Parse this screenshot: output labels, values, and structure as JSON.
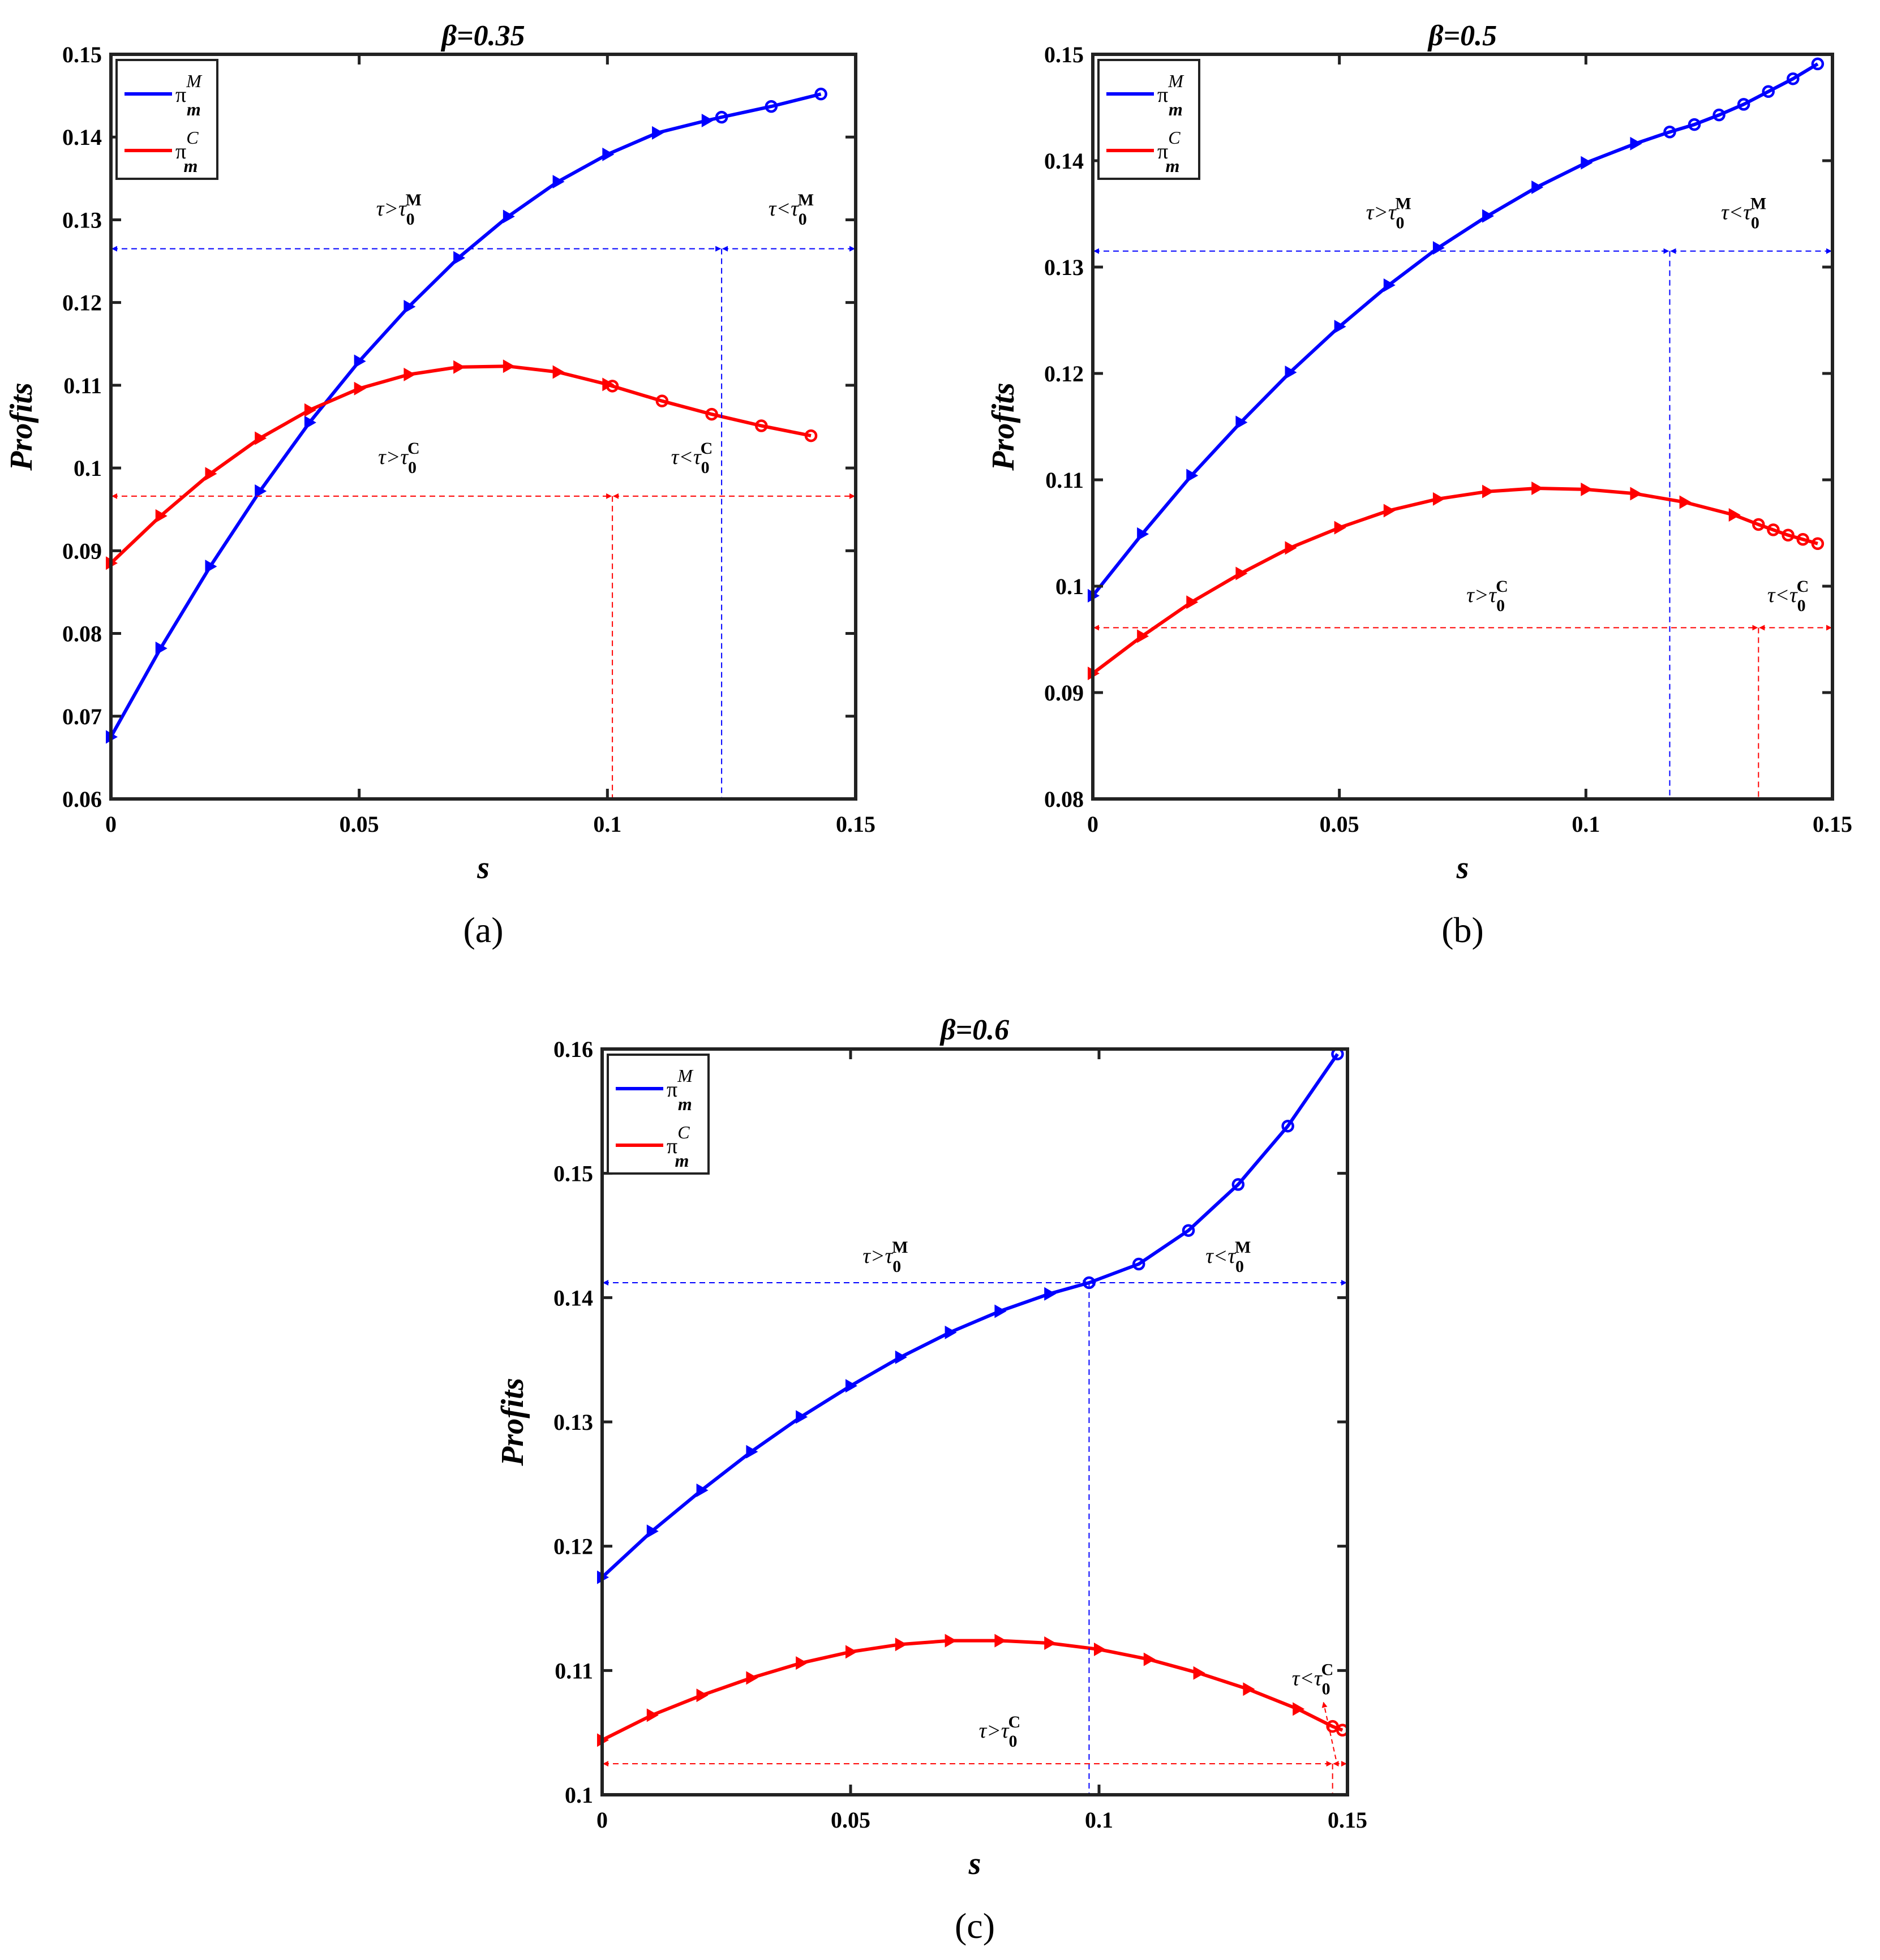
{
  "chart_data": [
    {
      "type": "line",
      "panel_label": "(a)",
      "title": "β=0.35",
      "title_parts": [
        "β=",
        "0.35"
      ],
      "xlabel": "s",
      "ylabel": "Profits",
      "xlim": [
        0,
        0.15
      ],
      "ylim": [
        0.06,
        0.15
      ],
      "xticks": [
        0,
        0.05,
        0.1,
        0.15
      ],
      "xtick_labels": [
        "0",
        "0.05",
        "0.1",
        "0.15"
      ],
      "yticks": [
        0.06,
        0.07,
        0.08,
        0.09,
        0.1,
        0.11,
        0.12,
        0.13,
        0.14,
        0.15
      ],
      "ytick_labels": [
        "0.06",
        "0.07",
        "0.08",
        "0.09",
        "0.1",
        "0.11",
        "0.12",
        "0.13",
        "0.14",
        "0.15"
      ],
      "legend_position": "top-left",
      "grid": false,
      "series": [
        {
          "name": "π_m^M",
          "legend_base": "π",
          "legend_sup": "M",
          "legend_sub": "m",
          "color": "#0000ff",
          "x": [
            0,
            0.01,
            0.02,
            0.03,
            0.04,
            0.05,
            0.06,
            0.07,
            0.08,
            0.09,
            0.1,
            0.11,
            0.12,
            0.123,
            0.133,
            0.143
          ],
          "y": [
            0.0675,
            0.0782,
            0.0881,
            0.0972,
            0.1055,
            0.1129,
            0.1195,
            0.1254,
            0.1304,
            0.1346,
            0.1379,
            0.1405,
            0.142,
            0.1424,
            0.1437,
            0.1452
          ],
          "markers": [
            "triangle",
            "triangle",
            "triangle",
            "triangle",
            "triangle",
            "triangle",
            "triangle",
            "triangle",
            "triangle",
            "triangle",
            "triangle",
            "triangle",
            "triangle",
            "circle",
            "circle",
            "circle"
          ]
        },
        {
          "name": "π_m^C",
          "legend_base": "π",
          "legend_sup": "C",
          "legend_sub": "m",
          "color": "#ff0000",
          "x": [
            0,
            0.01,
            0.02,
            0.03,
            0.04,
            0.05,
            0.06,
            0.07,
            0.08,
            0.09,
            0.1,
            0.101,
            0.111,
            0.121,
            0.131,
            0.141
          ],
          "y": [
            0.0885,
            0.0942,
            0.0993,
            0.1036,
            0.107,
            0.1096,
            0.1113,
            0.1122,
            0.1123,
            0.1116,
            0.1101,
            0.1099,
            0.1081,
            0.1065,
            0.1051,
            0.1039
          ],
          "markers": [
            "triangle",
            "triangle",
            "triangle",
            "triangle",
            "triangle",
            "triangle",
            "triangle",
            "triangle",
            "triangle",
            "triangle",
            "triangle",
            "circle",
            "circle",
            "circle",
            "circle",
            "circle"
          ]
        }
      ],
      "annotations": [
        {
          "color": "#0000ff",
          "y": 0.1265,
          "x_split": 0.123,
          "x_start": 0,
          "x_end": 0.15,
          "left_label": "τ>τ",
          "right_label": "τ<τ",
          "sub": "0",
          "sup": "M",
          "left_x": 0.058,
          "right_x": 0.137,
          "label_y": 0.1305
        },
        {
          "color": "#ff0000",
          "y": 0.0966,
          "x_split": 0.101,
          "x_start": 0,
          "x_end": 0.15,
          "left_label": "τ>τ",
          "right_label": "τ<τ",
          "sub": "0",
          "sup": "C",
          "left_x": 0.058,
          "right_x": 0.117,
          "label_y": 0.1005
        }
      ]
    },
    {
      "type": "line",
      "panel_label": "(b)",
      "title": "β=0.5",
      "title_parts": [
        "β=",
        "0.5"
      ],
      "xlabel": "s",
      "ylabel": "Profits",
      "xlim": [
        0,
        0.15
      ],
      "ylim": [
        0.08,
        0.15
      ],
      "xticks": [
        0,
        0.05,
        0.1,
        0.15
      ],
      "xtick_labels": [
        "0",
        "0.05",
        "0.1",
        "0.15"
      ],
      "yticks": [
        0.08,
        0.09,
        0.1,
        0.11,
        0.12,
        0.13,
        0.14,
        0.15
      ],
      "ytick_labels": [
        "0.08",
        "0.09",
        "0.1",
        "0.11",
        "0.12",
        "0.13",
        "0.14",
        "0.15"
      ],
      "legend_position": "top-left",
      "grid": false,
      "series": [
        {
          "name": "π_m^M",
          "legend_base": "π",
          "legend_sup": "M",
          "legend_sub": "m",
          "color": "#0000ff",
          "x": [
            0,
            0.01,
            0.02,
            0.03,
            0.04,
            0.05,
            0.06,
            0.07,
            0.08,
            0.09,
            0.1,
            0.11,
            0.117,
            0.122,
            0.127,
            0.132,
            0.137,
            0.142,
            0.147
          ],
          "y": [
            0.0991,
            0.1049,
            0.1104,
            0.1154,
            0.1201,
            0.1244,
            0.1283,
            0.1318,
            0.1348,
            0.1375,
            0.1398,
            0.1416,
            0.1427,
            0.1434,
            0.1443,
            0.1453,
            0.1465,
            0.1477,
            0.1491
          ],
          "markers": [
            "triangle",
            "triangle",
            "triangle",
            "triangle",
            "triangle",
            "triangle",
            "triangle",
            "triangle",
            "triangle",
            "triangle",
            "triangle",
            "triangle",
            "circle",
            "circle",
            "circle",
            "circle",
            "circle",
            "circle",
            "circle"
          ]
        },
        {
          "name": "π_m^C",
          "legend_base": "π",
          "legend_sup": "C",
          "legend_sub": "m",
          "color": "#ff0000",
          "x": [
            0,
            0.01,
            0.02,
            0.03,
            0.04,
            0.05,
            0.06,
            0.07,
            0.08,
            0.09,
            0.1,
            0.11,
            0.12,
            0.13,
            0.135,
            0.138,
            0.141,
            0.144,
            0.147
          ],
          "y": [
            0.0918,
            0.0953,
            0.0985,
            0.1012,
            0.1036,
            0.1055,
            0.1071,
            0.1082,
            0.1089,
            0.1092,
            0.1091,
            0.1087,
            0.1079,
            0.1067,
            0.1058,
            0.1053,
            0.1048,
            0.1044,
            0.104
          ],
          "markers": [
            "triangle",
            "triangle",
            "triangle",
            "triangle",
            "triangle",
            "triangle",
            "triangle",
            "triangle",
            "triangle",
            "triangle",
            "triangle",
            "triangle",
            "triangle",
            "triangle",
            "circle",
            "circle",
            "circle",
            "circle",
            "circle"
          ]
        }
      ],
      "annotations": [
        {
          "color": "#0000ff",
          "y": 0.1315,
          "x_split": 0.117,
          "x_start": 0,
          "x_end": 0.15,
          "left_label": "τ>τ",
          "right_label": "τ<τ",
          "sub": "0",
          "sup": "M",
          "left_x": 0.06,
          "right_x": 0.132,
          "label_y": 0.1345
        },
        {
          "color": "#ff0000",
          "y": 0.0961,
          "x_split": 0.135,
          "x_start": 0,
          "x_end": 0.15,
          "left_label": "τ>τ",
          "right_label": "τ<τ",
          "sub": "0",
          "sup": "C",
          "left_x": 0.08,
          "right_x": 0.141,
          "label_y": 0.0985
        }
      ]
    },
    {
      "type": "line",
      "panel_label": "(c)",
      "title": "β=0.6",
      "title_parts": [
        "β=",
        "0.6"
      ],
      "xlabel": "s",
      "ylabel": "Profits",
      "xlim": [
        0,
        0.15
      ],
      "ylim": [
        0.1,
        0.16
      ],
      "xticks": [
        0,
        0.05,
        0.1,
        0.15
      ],
      "xtick_labels": [
        "0",
        "0.05",
        "0.1",
        "0.15"
      ],
      "yticks": [
        0.1,
        0.11,
        0.12,
        0.13,
        0.14,
        0.15,
        0.16
      ],
      "ytick_labels": [
        "0.1",
        "0.11",
        "0.12",
        "0.13",
        "0.14",
        "0.15",
        "0.16"
      ],
      "legend_position": "top-left",
      "grid": false,
      "series": [
        {
          "name": "π_m^M",
          "legend_base": "π",
          "legend_sup": "M",
          "legend_sub": "m",
          "color": "#0000ff",
          "x": [
            0,
            0.01,
            0.02,
            0.03,
            0.04,
            0.05,
            0.06,
            0.07,
            0.08,
            0.09,
            0.098,
            0.108,
            0.118,
            0.128,
            0.138,
            0.148
          ],
          "y": [
            0.1175,
            0.1212,
            0.1245,
            0.1276,
            0.1304,
            0.1329,
            0.1352,
            0.1372,
            0.1389,
            0.1403,
            0.1412,
            0.1427,
            0.1454,
            0.1491,
            0.1538,
            0.1596
          ],
          "markers": [
            "triangle",
            "triangle",
            "triangle",
            "triangle",
            "triangle",
            "triangle",
            "triangle",
            "triangle",
            "triangle",
            "triangle",
            "circle",
            "circle",
            "circle",
            "circle",
            "circle",
            "circle"
          ]
        },
        {
          "name": "π_m^C",
          "legend_base": "π",
          "legend_sup": "C",
          "legend_sub": "m",
          "color": "#ff0000",
          "x": [
            0,
            0.01,
            0.02,
            0.03,
            0.04,
            0.05,
            0.06,
            0.07,
            0.08,
            0.09,
            0.1,
            0.11,
            0.12,
            0.13,
            0.14,
            0.147,
            0.149
          ],
          "y": [
            0.1044,
            0.1064,
            0.108,
            0.1094,
            0.1106,
            0.1115,
            0.1121,
            0.1124,
            0.1124,
            0.1122,
            0.1117,
            0.1109,
            0.1098,
            0.1085,
            0.1069,
            0.1055,
            0.1052
          ],
          "markers": [
            "triangle",
            "triangle",
            "triangle",
            "triangle",
            "triangle",
            "triangle",
            "triangle",
            "triangle",
            "triangle",
            "triangle",
            "triangle",
            "triangle",
            "triangle",
            "triangle",
            "triangle",
            "circle",
            "circle"
          ]
        }
      ],
      "annotations": [
        {
          "color": "#0000ff",
          "y": 0.1412,
          "x_split": 0.098,
          "x_start": 0,
          "x_end": 0.15,
          "left_label": "τ>τ",
          "right_label": "τ<τ",
          "sub": "0",
          "sup": "M",
          "left_x": 0.057,
          "right_x": 0.126,
          "label_y": 0.1428
        },
        {
          "color": "#ff0000",
          "y": 0.1025,
          "x_split": 0.147,
          "x_start": 0,
          "x_end": 0.15,
          "left_label": "τ>τ",
          "right_label": "τ<τ",
          "sub": "0",
          "sup": "C",
          "left_x": 0.08,
          "right_x": 0.143,
          "label_y": 0.1046,
          "right_label_y": 0.1088
        }
      ]
    }
  ]
}
